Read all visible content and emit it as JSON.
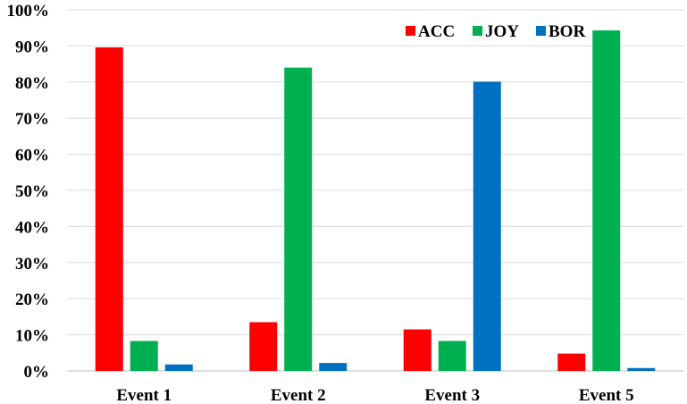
{
  "chart_data": {
    "type": "bar",
    "categories": [
      "Event 1",
      "Event 2",
      "Event 3",
      "Event 5"
    ],
    "series": [
      {
        "name": "ACC",
        "color": "#ff0000",
        "values": [
          0.896,
          0.135,
          0.115,
          0.048
        ]
      },
      {
        "name": "JOY",
        "color": "#00b050",
        "values": [
          0.083,
          0.84,
          0.083,
          0.943
        ]
      },
      {
        "name": "BOR",
        "color": "#0070c0",
        "values": [
          0.018,
          0.022,
          0.801,
          0.008
        ]
      }
    ],
    "y_ticks": [
      "0%",
      "10%",
      "20%",
      "30%",
      "40%",
      "50%",
      "60%",
      "70%",
      "80%",
      "90%",
      "100%"
    ],
    "ylim": [
      0,
      1
    ],
    "grid": true,
    "legend_position": "top-right"
  }
}
